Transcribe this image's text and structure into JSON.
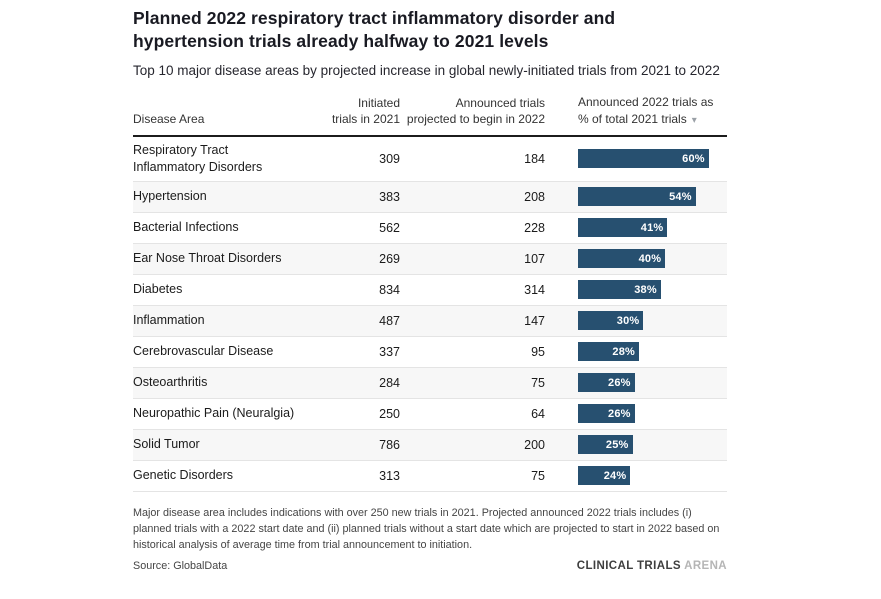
{
  "header": {
    "title": "Planned 2022 respiratory tract inflammatory disorder and hypertension trials already halfway to 2021 levels",
    "subtitle": "Top 10 major disease areas by projected increase in global newly-initiated trials from 2021 to 2022"
  },
  "table": {
    "columns": {
      "disease_area": "Disease Area",
      "initiated": [
        "Initiated",
        "trials in 2021"
      ],
      "announced": [
        "Announced trials",
        "projected to begin in 2022"
      ],
      "pct": [
        "Announced 2022 trials as",
        "% of total 2021 trials"
      ]
    },
    "sort_icon": "▾",
    "rows": [
      {
        "disease": [
          "Respiratory Tract",
          "Inflammatory Disorders"
        ],
        "initiated_2021": "309",
        "announced_2022": "184",
        "pct": 60,
        "pct_label": "60%"
      },
      {
        "disease": "Hypertension",
        "initiated_2021": "383",
        "announced_2022": "208",
        "pct": 54,
        "pct_label": "54%"
      },
      {
        "disease": "Bacterial Infections",
        "initiated_2021": "562",
        "announced_2022": "228",
        "pct": 41,
        "pct_label": "41%"
      },
      {
        "disease": "Ear Nose Throat Disorders",
        "initiated_2021": "269",
        "announced_2022": "107",
        "pct": 40,
        "pct_label": "40%"
      },
      {
        "disease": "Diabetes",
        "initiated_2021": "834",
        "announced_2022": "314",
        "pct": 38,
        "pct_label": "38%"
      },
      {
        "disease": "Inflammation",
        "initiated_2021": "487",
        "announced_2022": "147",
        "pct": 30,
        "pct_label": "30%"
      },
      {
        "disease": "Cerebrovascular Disease",
        "initiated_2021": "337",
        "announced_2022": "95",
        "pct": 28,
        "pct_label": "28%"
      },
      {
        "disease": "Osteoarthritis",
        "initiated_2021": "284",
        "announced_2022": "75",
        "pct": 26,
        "pct_label": "26%"
      },
      {
        "disease": "Neuropathic Pain (Neuralgia)",
        "initiated_2021": "250",
        "announced_2022": "64",
        "pct": 26,
        "pct_label": "26%"
      },
      {
        "disease": "Solid Tumor",
        "initiated_2021": "786",
        "announced_2022": "200",
        "pct": 25,
        "pct_label": "25%"
      },
      {
        "disease": "Genetic Disorders",
        "initiated_2021": "313",
        "announced_2022": "75",
        "pct": 24,
        "pct_label": "24%"
      }
    ]
  },
  "chart_data": {
    "type": "bar",
    "title": "Planned 2022 respiratory tract inflammatory disorder and hypertension trials already halfway to 2021 levels",
    "subtitle": "Top 10 major disease areas by projected increase in global newly-initiated trials from 2021 to 2022",
    "layout": "horizontal bars embedded in table rows, sorted descending by percent",
    "categories": [
      "Respiratory Tract Inflammatory Disorders",
      "Hypertension",
      "Bacterial Infections",
      "Ear Nose Throat Disorders",
      "Diabetes",
      "Inflammation",
      "Cerebrovascular Disease",
      "Osteoarthritis",
      "Neuropathic Pain (Neuralgia)",
      "Solid Tumor",
      "Genetic Disorders"
    ],
    "series": [
      {
        "name": "Initiated trials in 2021",
        "values": [
          309,
          383,
          562,
          269,
          834,
          487,
          337,
          284,
          250,
          786,
          313
        ]
      },
      {
        "name": "Announced trials projected to begin in 2022",
        "values": [
          184,
          208,
          228,
          107,
          314,
          147,
          95,
          75,
          64,
          200,
          75
        ]
      },
      {
        "name": "Announced 2022 trials as % of total 2021 trials",
        "values": [
          60,
          54,
          41,
          40,
          38,
          30,
          28,
          26,
          26,
          25,
          24
        ]
      }
    ],
    "bar_series": "Announced 2022 trials as % of total 2021 trials",
    "value_suffix": "%",
    "xlim": [
      0,
      65
    ],
    "legend": "none",
    "grid": false
  },
  "footer": {
    "note": "Major disease area includes indications with over 250 new trials in 2021. Projected announced 2022 trials includes (i) planned trials with a 2022 start date and (ii) planned trials without a start date which are projected to start in 2022 based on historical analysis of average time from trial announcement to initiation.",
    "source": "Source: GlobalData",
    "logo_bold": "CLINICAL TRIALS",
    "logo_light": "ARENA"
  },
  "colors": {
    "bar": "#275070",
    "alt_row": "#f7f7f7",
    "header_border": "#1c1c1c",
    "row_border": "#e4e4e4",
    "bar_label": "#ffffff"
  }
}
